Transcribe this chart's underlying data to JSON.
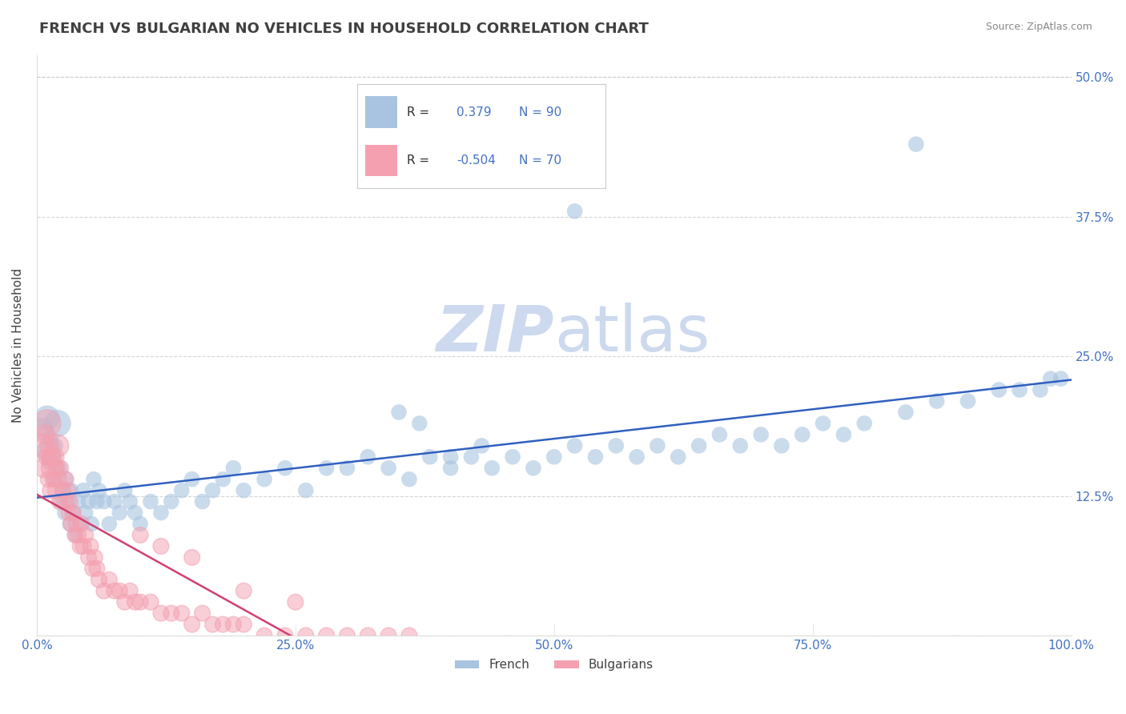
{
  "title": "FRENCH VS BULGARIAN NO VEHICLES IN HOUSEHOLD CORRELATION CHART",
  "source_text": "Source: ZipAtlas.com",
  "ylabel": "No Vehicles in Household",
  "xlim": [
    0.0,
    1.0
  ],
  "ylim": [
    0.0,
    0.52
  ],
  "xticks": [
    0.0,
    0.25,
    0.5,
    0.75,
    1.0
  ],
  "xticklabels": [
    "0.0%",
    "25.0%",
    "50.0%",
    "75.0%",
    "100.0%"
  ],
  "yticks": [
    0.0,
    0.125,
    0.25,
    0.375,
    0.5
  ],
  "yticklabels": [
    "",
    "12.5%",
    "25.0%",
    "37.5%",
    "50.0%"
  ],
  "french_R": 0.379,
  "french_N": 90,
  "bulgarian_R": -0.504,
  "bulgarian_N": 70,
  "french_color": "#a8c4e0",
  "bulgarian_color": "#f4a0b0",
  "french_line_color": "#3060c0",
  "bulgarian_line_color": "#d04070",
  "title_color": "#404040",
  "tick_color": "#4472c4",
  "legend_r_color": "#4472c4",
  "watermark_color": "#ccd9ee",
  "background_color": "#ffffff",
  "grid_color": "#cccccc",
  "french_x": [
    0.005,
    0.008,
    0.01,
    0.012,
    0.013,
    0.015,
    0.016,
    0.018,
    0.02,
    0.022,
    0.023,
    0.025,
    0.027,
    0.028,
    0.03,
    0.032,
    0.033,
    0.035,
    0.037,
    0.04,
    0.042,
    0.045,
    0.047,
    0.05,
    0.053,
    0.055,
    0.058,
    0.06,
    0.065,
    0.07,
    0.075,
    0.08,
    0.085,
    0.09,
    0.095,
    0.1,
    0.11,
    0.12,
    0.13,
    0.14,
    0.15,
    0.16,
    0.17,
    0.18,
    0.19,
    0.2,
    0.22,
    0.24,
    0.26,
    0.28,
    0.3,
    0.32,
    0.34,
    0.36,
    0.38,
    0.4,
    0.42,
    0.44,
    0.46,
    0.48,
    0.5,
    0.52,
    0.54,
    0.56,
    0.58,
    0.6,
    0.62,
    0.64,
    0.66,
    0.68,
    0.7,
    0.72,
    0.74,
    0.76,
    0.78,
    0.8,
    0.84,
    0.87,
    0.9,
    0.93,
    0.95,
    0.97,
    0.98,
    0.99,
    0.35,
    0.37,
    0.4,
    0.43,
    0.85,
    0.52
  ],
  "french_y": [
    0.185,
    0.165,
    0.195,
    0.155,
    0.175,
    0.16,
    0.14,
    0.17,
    0.19,
    0.15,
    0.12,
    0.13,
    0.11,
    0.14,
    0.12,
    0.1,
    0.13,
    0.11,
    0.09,
    0.12,
    0.1,
    0.13,
    0.11,
    0.12,
    0.1,
    0.14,
    0.12,
    0.13,
    0.12,
    0.1,
    0.12,
    0.11,
    0.13,
    0.12,
    0.11,
    0.1,
    0.12,
    0.11,
    0.12,
    0.13,
    0.14,
    0.12,
    0.13,
    0.14,
    0.15,
    0.13,
    0.14,
    0.15,
    0.13,
    0.15,
    0.15,
    0.16,
    0.15,
    0.14,
    0.16,
    0.15,
    0.16,
    0.15,
    0.16,
    0.15,
    0.16,
    0.17,
    0.16,
    0.17,
    0.16,
    0.17,
    0.16,
    0.17,
    0.18,
    0.17,
    0.18,
    0.17,
    0.18,
    0.19,
    0.18,
    0.19,
    0.2,
    0.21,
    0.21,
    0.22,
    0.22,
    0.22,
    0.23,
    0.23,
    0.2,
    0.19,
    0.16,
    0.17,
    0.44,
    0.38
  ],
  "french_sizes": [
    400,
    300,
    500,
    200,
    250,
    300,
    200,
    200,
    600,
    200,
    200,
    200,
    200,
    200,
    200,
    200,
    200,
    200,
    200,
    200,
    200,
    200,
    200,
    200,
    200,
    200,
    200,
    200,
    200,
    200,
    200,
    200,
    200,
    200,
    200,
    200,
    200,
    200,
    200,
    200,
    200,
    200,
    200,
    200,
    200,
    200,
    200,
    200,
    200,
    200,
    200,
    200,
    200,
    200,
    200,
    200,
    200,
    200,
    200,
    200,
    200,
    200,
    200,
    200,
    200,
    200,
    200,
    200,
    200,
    200,
    200,
    200,
    200,
    200,
    200,
    200,
    200,
    200,
    200,
    200,
    200,
    200,
    200,
    200,
    200,
    200,
    200,
    200,
    200,
    200
  ],
  "bulgarian_x": [
    0.005,
    0.007,
    0.008,
    0.009,
    0.01,
    0.011,
    0.012,
    0.013,
    0.014,
    0.015,
    0.016,
    0.017,
    0.018,
    0.019,
    0.02,
    0.021,
    0.022,
    0.023,
    0.025,
    0.027,
    0.028,
    0.03,
    0.031,
    0.032,
    0.033,
    0.035,
    0.037,
    0.038,
    0.04,
    0.042,
    0.043,
    0.045,
    0.047,
    0.05,
    0.052,
    0.054,
    0.056,
    0.058,
    0.06,
    0.065,
    0.07,
    0.075,
    0.08,
    0.085,
    0.09,
    0.095,
    0.1,
    0.11,
    0.12,
    0.13,
    0.14,
    0.15,
    0.16,
    0.17,
    0.18,
    0.19,
    0.2,
    0.22,
    0.24,
    0.26,
    0.28,
    0.3,
    0.32,
    0.34,
    0.36,
    0.1,
    0.12,
    0.15,
    0.2,
    0.25
  ],
  "bulgarian_y": [
    0.17,
    0.15,
    0.18,
    0.16,
    0.19,
    0.14,
    0.17,
    0.13,
    0.16,
    0.15,
    0.14,
    0.16,
    0.13,
    0.15,
    0.17,
    0.14,
    0.12,
    0.15,
    0.13,
    0.12,
    0.14,
    0.13,
    0.11,
    0.12,
    0.1,
    0.11,
    0.09,
    0.1,
    0.09,
    0.08,
    0.1,
    0.08,
    0.09,
    0.07,
    0.08,
    0.06,
    0.07,
    0.06,
    0.05,
    0.04,
    0.05,
    0.04,
    0.04,
    0.03,
    0.04,
    0.03,
    0.03,
    0.03,
    0.02,
    0.02,
    0.02,
    0.01,
    0.02,
    0.01,
    0.01,
    0.01,
    0.01,
    0.0,
    0.0,
    0.0,
    0.0,
    0.0,
    0.0,
    0.0,
    0.0,
    0.09,
    0.08,
    0.07,
    0.04,
    0.03
  ],
  "bulgarian_sizes": [
    400,
    300,
    300,
    200,
    600,
    200,
    300,
    200,
    300,
    400,
    200,
    300,
    200,
    200,
    400,
    200,
    200,
    200,
    200,
    200,
    200,
    200,
    200,
    200,
    200,
    200,
    200,
    200,
    200,
    200,
    200,
    200,
    200,
    200,
    200,
    200,
    200,
    200,
    200,
    200,
    200,
    200,
    200,
    200,
    200,
    200,
    200,
    200,
    200,
    200,
    200,
    200,
    200,
    200,
    200,
    200,
    200,
    200,
    200,
    200,
    200,
    200,
    200,
    200,
    200,
    200,
    200,
    200,
    200,
    200
  ]
}
